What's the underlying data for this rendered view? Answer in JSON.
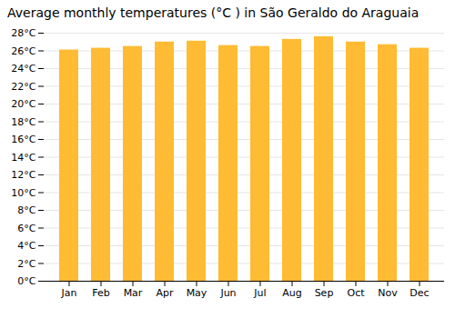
{
  "chart_data": {
    "type": "bar",
    "title": "Average monthly temperatures (°C ) in São Geraldo do Araguaia",
    "categories": [
      "Jan",
      "Feb",
      "Mar",
      "Apr",
      "May",
      "Jun",
      "Jul",
      "Aug",
      "Sep",
      "Oct",
      "Nov",
      "Dec"
    ],
    "values": [
      26.1,
      26.3,
      26.5,
      27.0,
      27.1,
      26.6,
      26.5,
      27.3,
      27.6,
      27.0,
      26.7,
      26.3
    ],
    "color": "#FFBB33",
    "ylim": [
      0,
      28
    ],
    "yticks": [
      {
        "value": 0,
        "label": "0°C"
      },
      {
        "value": 2,
        "label": "2°C"
      },
      {
        "value": 4,
        "label": "4°C"
      },
      {
        "value": 6,
        "label": "6°C"
      },
      {
        "value": 8,
        "label": "8°C"
      },
      {
        "value": 10,
        "label": "10°C"
      },
      {
        "value": 12,
        "label": "12°C"
      },
      {
        "value": 14,
        "label": "14°C"
      },
      {
        "value": 16,
        "label": "16°C"
      },
      {
        "value": 18,
        "label": "18°C"
      },
      {
        "value": 20,
        "label": "20°C"
      },
      {
        "value": 22,
        "label": "22°C"
      },
      {
        "value": 24,
        "label": "24°C"
      },
      {
        "value": 26,
        "label": "26°C"
      },
      {
        "value": 28,
        "label": "28°C"
      }
    ],
    "grid": true
  }
}
